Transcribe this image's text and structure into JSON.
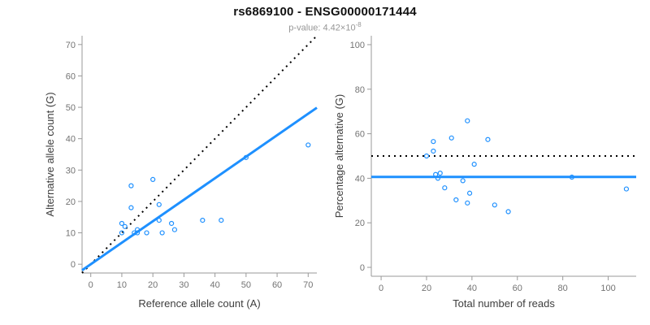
{
  "header": {
    "title": "rs6869100 - ENSG00000171444",
    "subtitle_label": "p-value: ",
    "subtitle_value": "4.42×10",
    "subtitle_exponent": "-8"
  },
  "colors": {
    "accent_blue": "#1E90FF",
    "dotted_black": "#000000",
    "axis_line": "#999999",
    "tick_text": "#737373",
    "axis_title_text": "#3d3d3d",
    "title_text": "#111111",
    "subtitle_text": "#969696"
  },
  "marker": {
    "shape": "open-circle",
    "radius": 2.5,
    "color": "#1E90FF"
  },
  "chart_data": [
    {
      "type": "scatter",
      "name": "allele-counts-scatter",
      "xlabel": "Reference allele count (A)",
      "ylabel": "Alternative allele count (G)",
      "xlim": [
        0,
        70
      ],
      "ylim": [
        0,
        70
      ],
      "xticks": [
        0,
        10,
        20,
        30,
        40,
        50,
        60,
        70
      ],
      "yticks": [
        0,
        10,
        20,
        30,
        40,
        50,
        60,
        70
      ],
      "grid": false,
      "legend": null,
      "points": [
        [
          10,
          10
        ],
        [
          10,
          13
        ],
        [
          11,
          12
        ],
        [
          13,
          18
        ],
        [
          13,
          25
        ],
        [
          14,
          10
        ],
        [
          15,
          10
        ],
        [
          15,
          11
        ],
        [
          18,
          10
        ],
        [
          20,
          27
        ],
        [
          22,
          14
        ],
        [
          22,
          19
        ],
        [
          23,
          10
        ],
        [
          26,
          13
        ],
        [
          27,
          11
        ],
        [
          36,
          14
        ],
        [
          42,
          14
        ],
        [
          50,
          34
        ],
        [
          70,
          38
        ]
      ],
      "lines": [
        {
          "kind": "identity",
          "style": "dotted",
          "color": "#000000"
        },
        {
          "kind": "slope",
          "slope": 0.685,
          "intercept": 0,
          "style": "solid",
          "color": "#1E90FF"
        }
      ]
    },
    {
      "type": "scatter",
      "name": "percentage-vs-reads-scatter",
      "xlabel": "Total number of reads",
      "ylabel": "Percentage alternative (G)",
      "xlim": [
        0,
        108
      ],
      "ylim": [
        0,
        100
      ],
      "xticks": [
        0,
        20,
        40,
        60,
        80,
        100
      ],
      "yticks": [
        0,
        20,
        40,
        60,
        80,
        100
      ],
      "grid": false,
      "legend": null,
      "points": [
        [
          20,
          50.0
        ],
        [
          23,
          56.5
        ],
        [
          23,
          52.2
        ],
        [
          31,
          58.1
        ],
        [
          38,
          65.8
        ],
        [
          24,
          41.7
        ],
        [
          25,
          40.0
        ],
        [
          26,
          42.3
        ],
        [
          28,
          35.7
        ],
        [
          47,
          57.4
        ],
        [
          36,
          38.9
        ],
        [
          41,
          46.3
        ],
        [
          33,
          30.3
        ],
        [
          39,
          33.3
        ],
        [
          38,
          28.9
        ],
        [
          50,
          28.0
        ],
        [
          56,
          25.0
        ],
        [
          84,
          40.5
        ],
        [
          108,
          35.2
        ]
      ],
      "lines": [
        {
          "kind": "hline",
          "y": 50,
          "style": "dotted",
          "color": "#000000"
        },
        {
          "kind": "hline",
          "y": 40.6,
          "style": "solid",
          "color": "#1E90FF"
        }
      ]
    }
  ]
}
